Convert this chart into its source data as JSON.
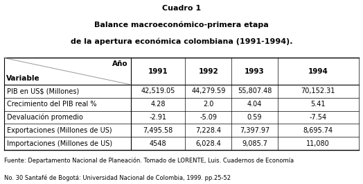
{
  "title_line1": "Cuadro 1",
  "title_line2": "Balance macroeconómico-primera etapa",
  "title_line3": "de la apertura económica colombiana (1991-1994).",
  "col_headers": [
    "1991",
    "1992",
    "1993",
    "1994"
  ],
  "row_labels": [
    "PIB en US$ (Millones)",
    "Crecimiento del PIB real %",
    "Devaluación promedio",
    "Exportaciones (Millones de US)",
    "Importaciones (Millones de US)"
  ],
  "data": [
    [
      "42,519.05",
      "44,279.59",
      "55,807.48",
      "70,152.31"
    ],
    [
      "4.28",
      "2.0",
      "4.04",
      "5.41"
    ],
    [
      "-2.91",
      "-5.09",
      "0.59",
      "-7.54"
    ],
    [
      "7,495.58",
      "7,228.4",
      "7,397.97",
      "8,695.74"
    ],
    [
      "4548",
      "6,028.4",
      "9,085.7",
      "11,080"
    ]
  ],
  "footer_line1": "Fuente: Departamento Nacional de Planeación. Tomado de LORENTE, Luis. Cuadernos de Economía",
  "footer_line2": "No. 30 Santafé de Bogotá: Universidad Nacional de Colombia, 1999. pp.25-52",
  "header_var": "Variable",
  "header_year": "Año",
  "bg_color": "#ffffff",
  "text_color": "#000000",
  "line_color": "#000000",
  "title_fontsize": 8.0,
  "header_fontsize": 7.5,
  "cell_fontsize": 7.0,
  "footer_fontsize": 6.0
}
